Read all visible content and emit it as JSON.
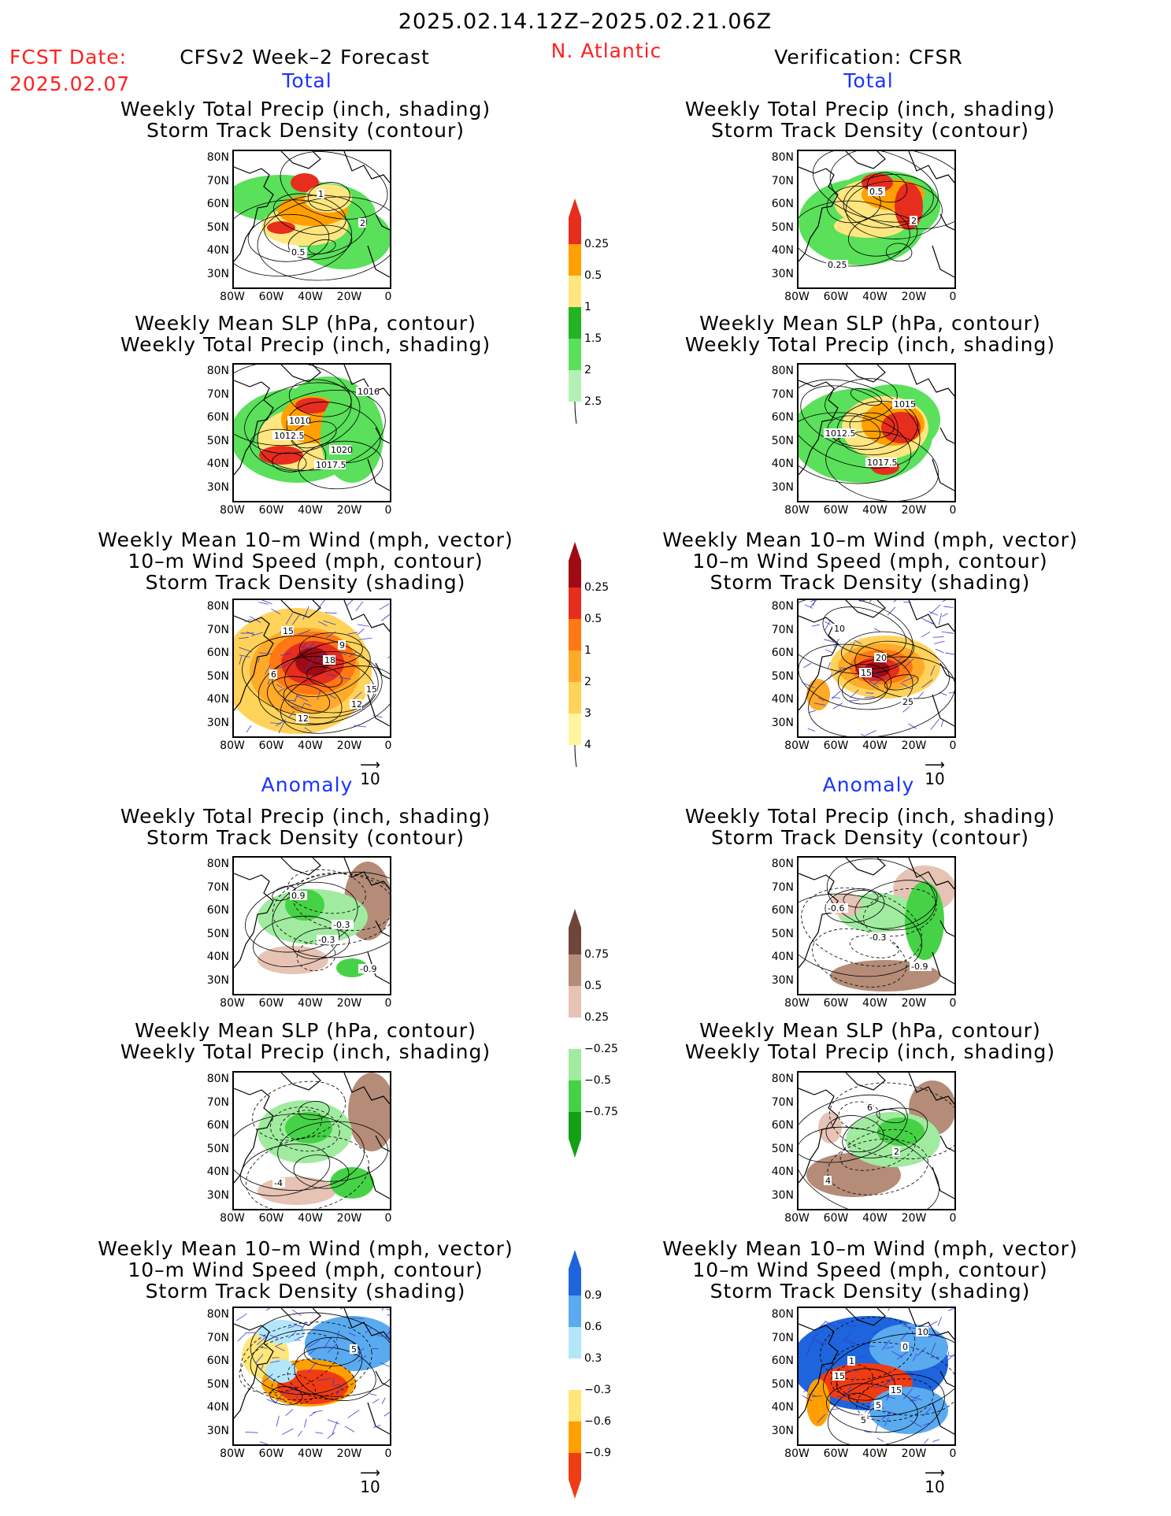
{
  "header": {
    "date_range": "2025.02.14.12Z–2025.02.21.06Z",
    "fcst_label": "FCST Date:",
    "fcst_date": "2025.02.07",
    "left_title": "CFSv2 Week–2 Forecast",
    "region": "N. Atlantic",
    "right_title": "Verification: CFSR"
  },
  "sections": {
    "total": "Total",
    "anomaly": "Anomaly"
  },
  "panel_titles": {
    "precip_track": [
      "Weekly Total Precip (inch, shading)",
      "Storm Track Density (contour)"
    ],
    "slp_precip": [
      "Weekly Mean SLP (hPa, contour)",
      "Weekly Total Precip (inch, shading)"
    ],
    "wind_track": [
      "Weekly Mean 10–m Wind (mph, vector)",
      "10–m Wind Speed (mph, contour)",
      "Storm Track Density (shading)"
    ]
  },
  "axes": {
    "lat_ticks": [
      "80N",
      "70N",
      "60N",
      "50N",
      "40N",
      "30N"
    ],
    "lon_ticks": [
      "80W",
      "60W",
      "40W",
      "20W",
      "0"
    ],
    "vector_ref": "10"
  },
  "colors": {
    "title_red": "#ff2020",
    "title_blue": "#1a33ff"
  },
  "chart_data": {
    "type": "heatmap",
    "colorbars": [
      {
        "name": "total_precip",
        "levels": [
          "0.25",
          "0.5",
          "1",
          "1.5",
          "2",
          "2.5"
        ],
        "colors": [
          "#b4f0b4",
          "#5ae05a",
          "#22b422",
          "#ffe680",
          "#ffa000",
          "#e62d1e"
        ]
      },
      {
        "name": "total_storm_track",
        "levels": [
          "0.25",
          "0.5",
          "1",
          "2",
          "3",
          "4"
        ],
        "colors": [
          "#fff5a0",
          "#ffd25a",
          "#ffaa28",
          "#ff7814",
          "#e62d1e",
          "#a00a14"
        ]
      },
      {
        "name": "anom_precip",
        "levels": [
          "0.75",
          "0.5",
          "0.25",
          "−0.25",
          "−0.5",
          "−0.75"
        ],
        "colors": [
          "#14a014",
          "#46d246",
          "#a0eba0",
          "#ffffff",
          "#e6c3b4",
          "#b48c78",
          "#6e463c"
        ]
      },
      {
        "name": "anom_storm_track",
        "levels": [
          "0.9",
          "0.6",
          "0.3",
          "−0.3",
          "−0.6",
          "−0.9"
        ],
        "colors": [
          "#f03c14",
          "#ffa000",
          "#ffe678",
          "#ffffff",
          "#b4e6fa",
          "#5aaaf0",
          "#1e64dc"
        ]
      }
    ],
    "panels": [
      {
        "id": "fcst-total-precip",
        "contour_labels": [
          "1",
          "2",
          "0.5"
        ]
      },
      {
        "id": "fcst-total-slp",
        "contour_labels": [
          "1012.5",
          "1017.5",
          "1016",
          "1010",
          "1020"
        ]
      },
      {
        "id": "fcst-total-wind",
        "contour_labels": [
          "12",
          "15",
          "18",
          "15",
          "12",
          "9",
          "6"
        ]
      },
      {
        "id": "verif-total-precip",
        "contour_labels": [
          "0.25",
          "0.5",
          "2"
        ]
      },
      {
        "id": "verif-total-slp",
        "contour_labels": [
          "1015",
          "1012.5",
          "1017.5"
        ]
      },
      {
        "id": "verif-total-wind",
        "contour_labels": [
          "15",
          "25",
          "10",
          "20"
        ]
      },
      {
        "id": "fcst-anom-precip",
        "contour_labels": [
          "-0.3",
          "-0.9",
          "0.9",
          "-0.3"
        ]
      },
      {
        "id": "fcst-anom-slp",
        "contour_labels": [
          "-4"
        ]
      },
      {
        "id": "fcst-anom-wind",
        "contour_labels": [
          "5"
        ]
      },
      {
        "id": "verif-anom-precip",
        "contour_labels": [
          "-0.6",
          "-0.3",
          "-0.9"
        ]
      },
      {
        "id": "verif-anom-slp",
        "contour_labels": [
          "2",
          "4",
          "6"
        ]
      },
      {
        "id": "verif-anom-wind",
        "contour_labels": [
          "5",
          "0",
          "15",
          "5",
          "10",
          "1",
          "15"
        ]
      }
    ]
  }
}
